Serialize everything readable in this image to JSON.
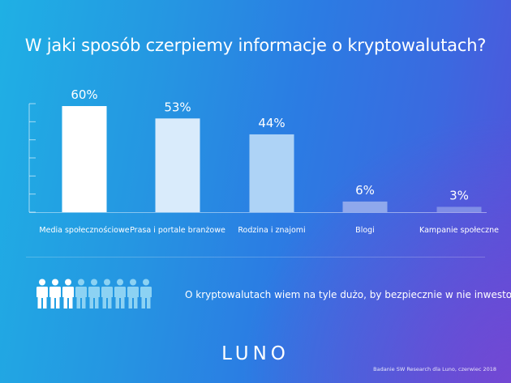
{
  "chart_data": {
    "type": "bar",
    "title": "W jaki sposób czerpiemy informacje o kryptowalutach?",
    "categories": [
      "Media społecznościowe",
      "Prasa i portale branżowe",
      "Rodzina i znajomi",
      "Blogi",
      "Kampanie społeczne"
    ],
    "values": [
      60,
      53,
      44,
      6,
      3
    ],
    "value_labels": [
      "60%",
      "53%",
      "44%",
      "6%",
      "3%"
    ],
    "ylim": [
      0,
      60
    ],
    "bar_colors": [
      "#ffffff",
      "#d9ebfb",
      "#aed3f6",
      "#8fa8ec",
      "#7f8ee6"
    ],
    "grid": false
  },
  "people": {
    "highlighted": 3,
    "total": 9,
    "highlight_color": "#ffffff",
    "other_color": "#8cd2f3"
  },
  "statement": "O kryptowalutach wiem na tyle dużo, by bezpiecznie w nie inwestować",
  "logo": "LUNO",
  "source": "Badanie SW Research dla Luno, czerwiec 2018"
}
